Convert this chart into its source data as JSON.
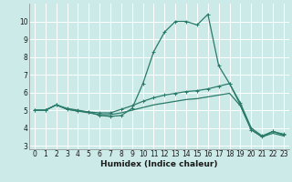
{
  "xlabel": "Humidex (Indice chaleur)",
  "bg_color": "#cceae8",
  "grid_color": "#ffffff",
  "line_color": "#2a7a6a",
  "xlim": [
    -0.5,
    23.5
  ],
  "ylim": [
    2.8,
    11.0
  ],
  "yticks": [
    3,
    4,
    5,
    6,
    7,
    8,
    9,
    10
  ],
  "xticks": [
    0,
    1,
    2,
    3,
    4,
    5,
    6,
    7,
    8,
    9,
    10,
    11,
    12,
    13,
    14,
    15,
    16,
    17,
    18,
    19,
    20,
    21,
    22,
    23
  ],
  "series1_x": [
    0,
    1,
    2,
    3,
    4,
    5,
    6,
    7,
    8,
    9,
    10,
    11,
    12,
    13,
    14,
    15,
    16,
    17,
    18,
    19,
    20,
    21,
    22,
    23
  ],
  "series1_y": [
    5.0,
    5.0,
    5.3,
    5.1,
    5.0,
    4.9,
    4.7,
    4.65,
    4.7,
    5.1,
    6.5,
    8.3,
    9.4,
    10.0,
    10.0,
    9.8,
    10.4,
    7.5,
    6.5,
    5.3,
    3.9,
    3.5,
    3.8,
    3.6
  ],
  "series2_x": [
    0,
    1,
    2,
    3,
    4,
    5,
    6,
    7,
    8,
    9,
    10,
    11,
    12,
    13,
    14,
    15,
    16,
    17,
    18,
    19,
    20,
    21,
    22,
    23
  ],
  "series2_y": [
    5.0,
    5.0,
    5.3,
    5.05,
    4.95,
    4.9,
    4.85,
    4.85,
    5.05,
    5.25,
    5.5,
    5.7,
    5.85,
    5.95,
    6.05,
    6.1,
    6.2,
    6.35,
    6.5,
    5.4,
    4.0,
    3.55,
    3.8,
    3.65
  ],
  "series3_x": [
    0,
    1,
    2,
    3,
    4,
    5,
    6,
    7,
    8,
    9,
    10,
    11,
    12,
    13,
    14,
    15,
    16,
    17,
    18,
    19,
    20,
    21,
    22,
    23
  ],
  "series3_y": [
    5.0,
    5.0,
    5.3,
    5.05,
    4.95,
    4.85,
    4.75,
    4.75,
    4.85,
    5.0,
    5.15,
    5.3,
    5.4,
    5.5,
    5.6,
    5.65,
    5.75,
    5.85,
    5.95,
    5.25,
    3.9,
    3.5,
    3.7,
    3.55
  ]
}
